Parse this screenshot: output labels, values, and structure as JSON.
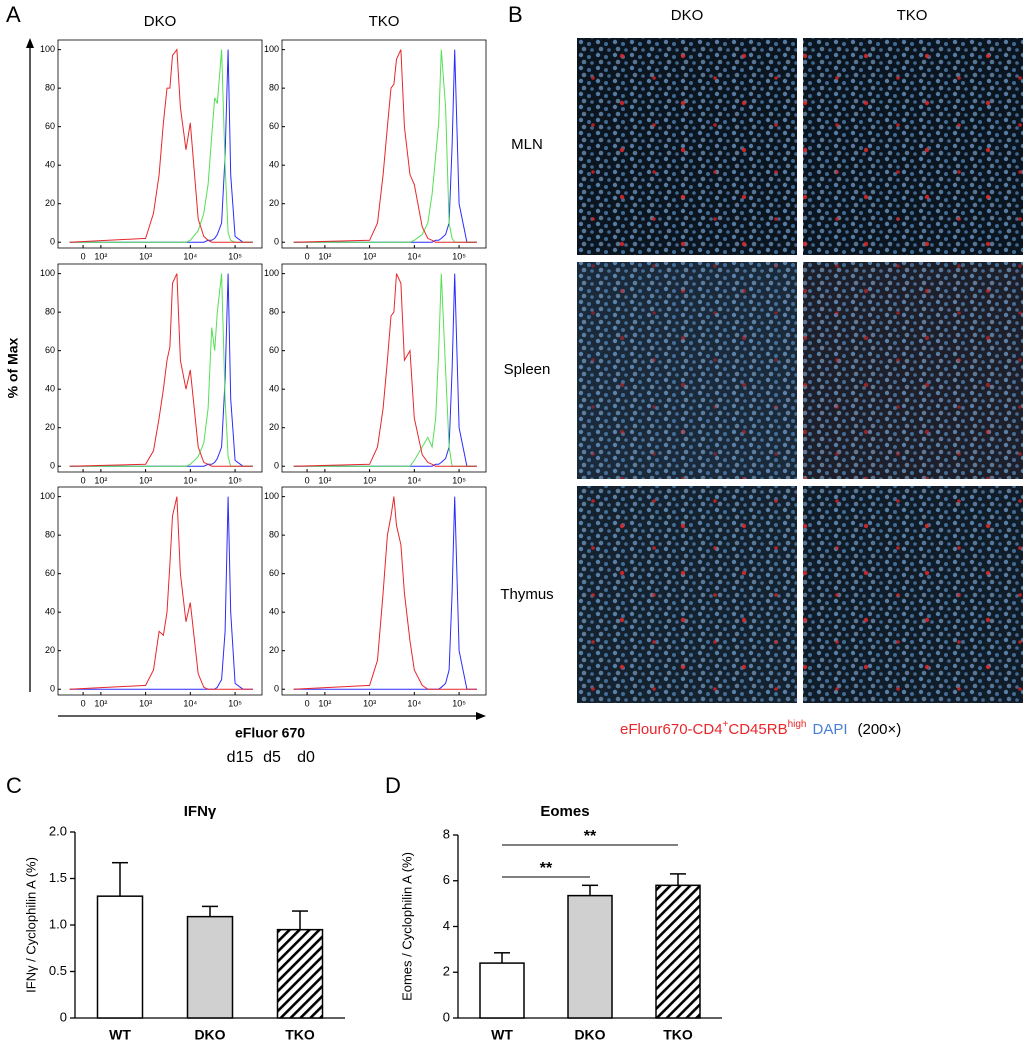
{
  "panel_labels": [
    "A",
    "B",
    "C",
    "D"
  ],
  "panel_a": {
    "columns": [
      "DKO",
      "TKO"
    ],
    "ylabel": "% of Max",
    "xlabel": "eFluor 670"
  },
  "panel_b": {
    "columns": [
      "DKO",
      "TKO"
    ],
    "rows": [
      "MLN",
      "Spleen",
      "Thymus"
    ],
    "caption": {
      "stain": "eFlour670-CD4",
      "sup1": "+",
      "marker": "CD45RB",
      "sup2": "high",
      "dapi": "DAPI",
      "magnification": "(200×)"
    }
  },
  "chart_data": [
    {
      "type": "line",
      "xscale": "log",
      "xlim": [
        11,
        400000
      ],
      "ylim": [
        -3,
        105
      ],
      "xticks": [
        {
          "value": 40,
          "label": "0"
        },
        {
          "value": 100,
          "label": "10²"
        },
        {
          "value": 1000,
          "label": "10³"
        },
        {
          "value": 10000,
          "label": "10⁴"
        },
        {
          "value": 100000,
          "label": "10⁵"
        }
      ],
      "yticks": [
        0,
        20,
        40,
        60,
        80,
        100
      ],
      "x": [
        20,
        1000,
        1500,
        2000,
        2500,
        3000,
        3500,
        4000,
        5000,
        6000,
        8000,
        10000,
        15000,
        20000,
        25000,
        30000,
        35000,
        40000,
        50000,
        60000,
        70000,
        80000,
        100000,
        150000,
        250000
      ],
      "series": [
        {
          "name": "d0",
          "color": "#2b2bff",
          "values": [
            0,
            0,
            0,
            0,
            0,
            0,
            0,
            0,
            0,
            0,
            0,
            0,
            0,
            0,
            1,
            1,
            2,
            4,
            10,
            45,
            100,
            35,
            3,
            0,
            0
          ]
        },
        {
          "name": "d5",
          "color": "#55e055",
          "values": [
            0,
            0,
            0,
            0,
            0,
            0,
            0,
            0,
            0,
            0,
            0,
            1,
            6,
            15,
            30,
            55,
            75,
            72,
            100,
            40,
            5,
            1,
            0,
            0,
            0
          ]
        },
        {
          "name": "d15",
          "color": "#e8262b",
          "values": [
            0,
            2,
            15,
            35,
            62,
            80,
            80,
            97,
            100,
            70,
            48,
            62,
            12,
            3,
            1,
            0,
            0,
            0,
            0,
            0,
            0,
            0,
            0,
            0,
            0
          ]
        }
      ]
    },
    {
      "type": "line",
      "xscale": "log",
      "xlim": [
        11,
        400000
      ],
      "ylim": [
        -3,
        105
      ],
      "xticks": [
        {
          "value": 40,
          "label": "0"
        },
        {
          "value": 100,
          "label": "10²"
        },
        {
          "value": 1000,
          "label": "10³"
        },
        {
          "value": 10000,
          "label": "10⁴"
        },
        {
          "value": 100000,
          "label": "10⁵"
        }
      ],
      "yticks": [
        0,
        20,
        40,
        60,
        80,
        100
      ],
      "x": [
        20,
        1000,
        1500,
        2000,
        2500,
        3000,
        3500,
        4000,
        5000,
        6000,
        8000,
        10000,
        15000,
        20000,
        25000,
        30000,
        35000,
        40000,
        50000,
        60000,
        70000,
        80000,
        100000,
        150000,
        250000
      ],
      "series": [
        {
          "color": "#2b2bff",
          "values": [
            0,
            0,
            0,
            0,
            0,
            0,
            0,
            0,
            0,
            0,
            0,
            0,
            0,
            0,
            0,
            1,
            1,
            2,
            4,
            10,
            50,
            100,
            20,
            0,
            0
          ]
        },
        {
          "color": "#55e055",
          "values": [
            0,
            0,
            0,
            0,
            0,
            0,
            0,
            0,
            0,
            0,
            0,
            1,
            4,
            10,
            25,
            45,
            62,
            100,
            70,
            10,
            2,
            0,
            0,
            0,
            0
          ]
        },
        {
          "color": "#e8262b",
          "values": [
            0,
            1,
            10,
            35,
            60,
            80,
            82,
            95,
            100,
            60,
            35,
            30,
            8,
            2,
            1,
            0,
            0,
            0,
            0,
            0,
            0,
            0,
            0,
            0,
            0
          ]
        }
      ]
    },
    {
      "type": "line",
      "xscale": "log",
      "xlim": [
        11,
        400000
      ],
      "ylim": [
        -3,
        105
      ],
      "xticks": [
        {
          "value": 40,
          "label": "0"
        },
        {
          "value": 100,
          "label": "10²"
        },
        {
          "value": 1000,
          "label": "10³"
        },
        {
          "value": 10000,
          "label": "10⁴"
        },
        {
          "value": 100000,
          "label": "10⁵"
        }
      ],
      "yticks": [
        0,
        20,
        40,
        60,
        80,
        100
      ],
      "x": [
        20,
        1000,
        1500,
        2000,
        2500,
        3000,
        3500,
        4000,
        5000,
        6000,
        8000,
        10000,
        15000,
        20000,
        25000,
        30000,
        35000,
        40000,
        50000,
        60000,
        70000,
        80000,
        100000,
        150000,
        250000
      ],
      "series": [
        {
          "color": "#2b2bff",
          "values": [
            0,
            0,
            0,
            0,
            0,
            0,
            0,
            0,
            0,
            0,
            0,
            0,
            0,
            0,
            1,
            1,
            2,
            4,
            10,
            45,
            100,
            35,
            3,
            0,
            0
          ]
        },
        {
          "color": "#55e055",
          "values": [
            0,
            0,
            0,
            0,
            0,
            0,
            0,
            0,
            0,
            0,
            0,
            1,
            5,
            12,
            30,
            72,
            60,
            80,
            100,
            35,
            5,
            0,
            0,
            0,
            0
          ]
        },
        {
          "color": "#e8262b",
          "values": [
            0,
            1,
            8,
            25,
            40,
            55,
            62,
            95,
            100,
            55,
            40,
            50,
            10,
            2,
            1,
            0,
            0,
            0,
            0,
            0,
            0,
            0,
            0,
            0,
            0
          ]
        }
      ]
    },
    {
      "type": "line",
      "xscale": "log",
      "xlim": [
        11,
        400000
      ],
      "ylim": [
        -3,
        105
      ],
      "xticks": [
        {
          "value": 40,
          "label": "0"
        },
        {
          "value": 100,
          "label": "10²"
        },
        {
          "value": 1000,
          "label": "10³"
        },
        {
          "value": 10000,
          "label": "10⁴"
        },
        {
          "value": 100000,
          "label": "10⁵"
        }
      ],
      "yticks": [
        0,
        20,
        40,
        60,
        80,
        100
      ],
      "x": [
        20,
        1000,
        1500,
        2000,
        2500,
        3000,
        3500,
        4000,
        5000,
        6000,
        8000,
        10000,
        15000,
        20000,
        25000,
        30000,
        35000,
        40000,
        50000,
        60000,
        70000,
        80000,
        100000,
        150000,
        250000
      ],
      "series": [
        {
          "color": "#2b2bff",
          "values": [
            0,
            0,
            0,
            0,
            0,
            0,
            0,
            0,
            0,
            0,
            0,
            0,
            0,
            0,
            0,
            1,
            1,
            2,
            4,
            10,
            50,
            100,
            20,
            0,
            0
          ]
        },
        {
          "color": "#55e055",
          "values": [
            0,
            0,
            0,
            0,
            0,
            0,
            0,
            0,
            0,
            0,
            0,
            3,
            10,
            15,
            10,
            25,
            60,
            100,
            50,
            10,
            0,
            0,
            0,
            0,
            0
          ]
        },
        {
          "color": "#e8262b",
          "values": [
            0,
            1,
            10,
            30,
            55,
            78,
            80,
            100,
            95,
            55,
            60,
            25,
            6,
            2,
            1,
            0,
            0,
            0,
            0,
            0,
            0,
            0,
            0,
            0,
            0
          ]
        }
      ]
    },
    {
      "type": "line",
      "xscale": "log",
      "xlim": [
        11,
        400000
      ],
      "ylim": [
        -3,
        105
      ],
      "xticks": [
        {
          "value": 40,
          "label": "0"
        },
        {
          "value": 100,
          "label": "10²"
        },
        {
          "value": 1000,
          "label": "10³"
        },
        {
          "value": 10000,
          "label": "10⁴"
        },
        {
          "value": 100000,
          "label": "10⁵"
        }
      ],
      "yticks": [
        0,
        20,
        40,
        60,
        80,
        100
      ],
      "x": [
        20,
        1000,
        1500,
        2000,
        2500,
        3000,
        3500,
        4000,
        5000,
        6000,
        8000,
        10000,
        15000,
        20000,
        25000,
        30000,
        35000,
        40000,
        50000,
        60000,
        70000,
        80000,
        100000,
        150000,
        250000
      ],
      "series": [
        {
          "color": "#2b2bff",
          "values": [
            0,
            0,
            0,
            0,
            0,
            0,
            0,
            0,
            0,
            0,
            0,
            0,
            0,
            0,
            0,
            0,
            0,
            1,
            5,
            30,
            100,
            40,
            3,
            0,
            0
          ]
        },
        {
          "color": "#e8262b",
          "values": [
            0,
            2,
            10,
            30,
            28,
            40,
            65,
            90,
            100,
            60,
            35,
            45,
            8,
            1,
            0,
            0,
            0,
            0,
            0,
            0,
            0,
            0,
            0,
            0,
            0
          ]
        }
      ]
    },
    {
      "type": "line",
      "xscale": "log",
      "xlim": [
        11,
        400000
      ],
      "ylim": [
        -3,
        105
      ],
      "xticks": [
        {
          "value": 40,
          "label": "0"
        },
        {
          "value": 100,
          "label": "10²"
        },
        {
          "value": 1000,
          "label": "10³"
        },
        {
          "value": 10000,
          "label": "10⁴"
        },
        {
          "value": 100000,
          "label": "10⁵"
        }
      ],
      "yticks": [
        0,
        20,
        40,
        60,
        80,
        100
      ],
      "x": [
        20,
        1000,
        1500,
        2000,
        2500,
        3000,
        3500,
        4000,
        5000,
        6000,
        8000,
        10000,
        15000,
        20000,
        25000,
        30000,
        35000,
        40000,
        50000,
        60000,
        70000,
        80000,
        100000,
        150000,
        250000
      ],
      "series": [
        {
          "color": "#2b2bff",
          "values": [
            0,
            0,
            0,
            0,
            0,
            0,
            0,
            0,
            0,
            0,
            0,
            0,
            0,
            0,
            0,
            0,
            0,
            1,
            3,
            10,
            50,
            100,
            20,
            0,
            0
          ]
        },
        {
          "color": "#e8262b",
          "values": [
            0,
            2,
            15,
            50,
            80,
            90,
            100,
            85,
            75,
            50,
            25,
            10,
            2,
            0,
            0,
            0,
            0,
            0,
            0,
            0,
            0,
            0,
            0,
            0,
            0
          ]
        }
      ]
    },
    {
      "type": "bar",
      "title": "IFNγ",
      "ylabel": "IFNγ / Cyclophilin A (%)",
      "categories": [
        "WT",
        "DKO",
        "TKO"
      ],
      "values": [
        1.31,
        1.09,
        0.95
      ],
      "errors": [
        0.36,
        0.11,
        0.2
      ],
      "colors": [
        "#ffffff",
        "#d0d0d0",
        "#000000"
      ],
      "hatched": [
        false,
        false,
        true
      ],
      "ylim": [
        0,
        2
      ],
      "yticks": [
        0,
        0.5,
        {
          "value": 1,
          "label": "1.0"
        },
        1.5,
        {
          "value": 2,
          "label": "2.0"
        }
      ]
    },
    {
      "type": "bar",
      "title": "Eomes",
      "ylabel": "Eomes / Cyclophilin A (%)",
      "categories": [
        "WT",
        "DKO",
        "TKO"
      ],
      "values": [
        2.4,
        5.35,
        5.8
      ],
      "errors": [
        0.45,
        0.45,
        0.5
      ],
      "colors": [
        "#ffffff",
        "#d0d0d0",
        "#000000"
      ],
      "hatched": [
        false,
        false,
        true
      ],
      "ylim": [
        0,
        8
      ],
      "yticks": [
        0,
        2,
        4,
        6,
        8
      ],
      "significance": [
        {
          "between": [
            "WT",
            "DKO"
          ],
          "label": "**"
        },
        {
          "between": [
            "WT",
            "TKO"
          ],
          "label": "**"
        }
      ]
    }
  ]
}
